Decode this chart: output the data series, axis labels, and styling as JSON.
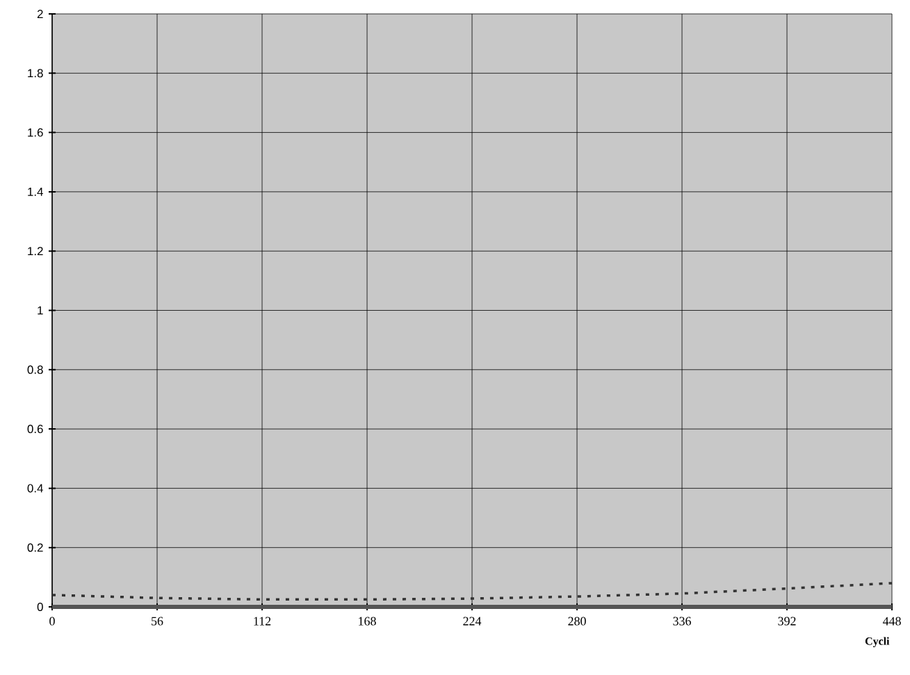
{
  "chart_data": {
    "type": "line",
    "xlabel": "Cycli",
    "series": [
      {
        "color": "#333333",
        "line_style": "dashed",
        "x": [
          0,
          56,
          112,
          168,
          224,
          280,
          336,
          392,
          448
        ],
        "values": [
          0.04,
          0.03,
          0.025,
          0.025,
          0.028,
          0.035,
          0.045,
          0.062,
          0.08
        ]
      },
      {
        "color": "#555555",
        "line_style": "solid",
        "x": [
          0,
          448
        ],
        "values": [
          0,
          0
        ]
      }
    ],
    "xlim": [
      0,
      448
    ],
    "xticks": [
      0,
      56,
      112,
      168,
      224,
      280,
      336,
      392,
      448
    ],
    "ylim": [
      0,
      2
    ],
    "yticks": [
      0,
      0.2,
      0.4,
      0.6,
      0.8,
      1,
      1.2,
      1.4,
      1.6,
      1.8,
      2
    ],
    "grid": true,
    "marker": "none"
  }
}
